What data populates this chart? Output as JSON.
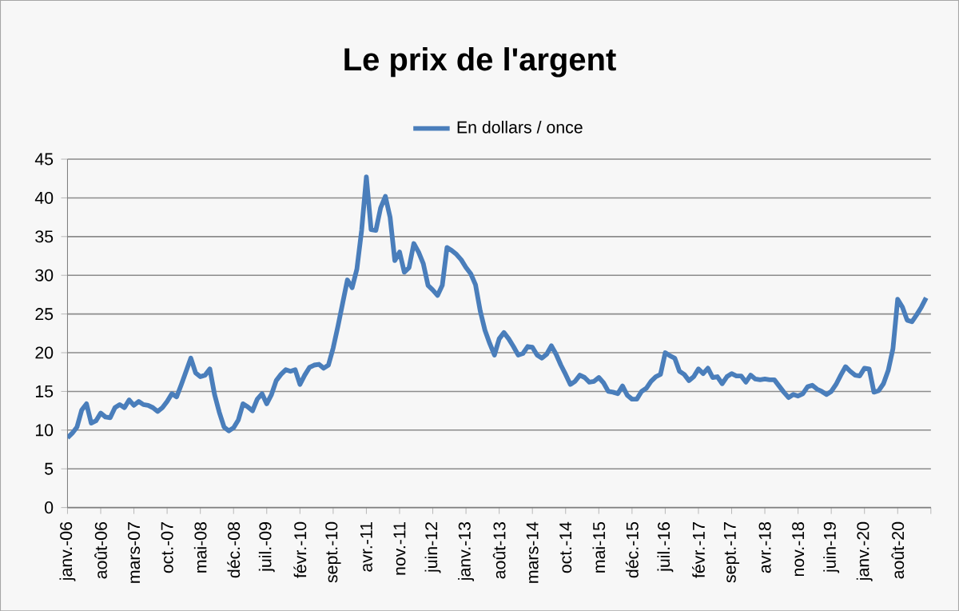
{
  "chart_data": {
    "type": "line",
    "title": "Le prix de l'argent",
    "categories": [
      "janv.-06",
      null,
      null,
      null,
      null,
      null,
      null,
      "août-06",
      null,
      null,
      null,
      null,
      null,
      null,
      "mars-07",
      null,
      null,
      null,
      null,
      null,
      null,
      "oct.-07",
      null,
      null,
      null,
      null,
      null,
      null,
      "mai-08",
      null,
      null,
      null,
      null,
      null,
      null,
      "déc.-08",
      null,
      null,
      null,
      null,
      null,
      null,
      "juil.-09",
      null,
      null,
      null,
      null,
      null,
      null,
      "févr.-10",
      null,
      null,
      null,
      null,
      null,
      null,
      "sept.-10",
      null,
      null,
      null,
      null,
      null,
      null,
      "avr.-11",
      null,
      null,
      null,
      null,
      null,
      null,
      "nov.-11",
      null,
      null,
      null,
      null,
      null,
      null,
      "juin-12",
      null,
      null,
      null,
      null,
      null,
      null,
      "janv.-13",
      null,
      null,
      null,
      null,
      null,
      null,
      "août-13",
      null,
      null,
      null,
      null,
      null,
      null,
      "mars-14",
      null,
      null,
      null,
      null,
      null,
      null,
      "oct.-14",
      null,
      null,
      null,
      null,
      null,
      null,
      "mai-15",
      null,
      null,
      null,
      null,
      null,
      null,
      "déc.-15",
      null,
      null,
      null,
      null,
      null,
      null,
      "juil.-16",
      null,
      null,
      null,
      null,
      null,
      null,
      "févr.-17",
      null,
      null,
      null,
      null,
      null,
      null,
      "sept.-17",
      null,
      null,
      null,
      null,
      null,
      null,
      "avr.-18",
      null,
      null,
      null,
      null,
      null,
      null,
      "nov.-18",
      null,
      null,
      null,
      null,
      null,
      null,
      "juin-19",
      null,
      null,
      null,
      null,
      null,
      null,
      "janv.-20",
      null,
      null,
      null,
      null,
      null,
      null,
      "août-20",
      null,
      null,
      null,
      null,
      null,
      null
    ],
    "series": [
      {
        "name": "En dollars / once",
        "color": "#4a7ebb",
        "values": [
          9.0,
          9.6,
          10.4,
          12.6,
          13.4,
          10.9,
          11.2,
          12.2,
          11.7,
          11.6,
          12.9,
          13.3,
          12.9,
          13.9,
          13.2,
          13.7,
          13.3,
          13.2,
          12.9,
          12.4,
          12.9,
          13.7,
          14.7,
          14.3,
          15.9,
          17.6,
          19.3,
          17.4,
          16.9,
          17.1,
          17.9,
          14.6,
          12.3,
          10.4,
          9.9,
          10.3,
          11.3,
          13.4,
          13.0,
          12.5,
          14.0,
          14.7,
          13.4,
          14.6,
          16.4,
          17.2,
          17.8,
          17.6,
          17.8,
          15.9,
          17.1,
          18.1,
          18.4,
          18.5,
          18.0,
          18.4,
          20.6,
          23.4,
          26.4,
          29.4,
          28.4,
          30.8,
          35.8,
          42.7,
          35.9,
          35.8,
          38.7,
          40.2,
          37.5,
          31.9,
          33.0,
          30.4,
          31.0,
          34.1,
          33.0,
          31.5,
          28.7,
          28.1,
          27.4,
          28.7,
          33.6,
          33.2,
          32.7,
          32.0,
          31.0,
          30.2,
          28.8,
          25.4,
          22.9,
          21.2,
          19.7,
          21.8,
          22.6,
          21.8,
          20.8,
          19.7,
          19.9,
          20.8,
          20.7,
          19.7,
          19.3,
          19.8,
          20.9,
          19.8,
          18.4,
          17.2,
          15.9,
          16.3,
          17.1,
          16.8,
          16.2,
          16.3,
          16.8,
          16.1,
          15.0,
          14.9,
          14.7,
          15.7,
          14.5,
          14.0,
          14.0,
          15.0,
          15.4,
          16.3,
          16.9,
          17.2,
          20.0,
          19.6,
          19.3,
          17.6,
          17.2,
          16.4,
          16.9,
          17.9,
          17.3,
          18.0,
          16.8,
          16.9,
          16.0,
          16.9,
          17.3,
          17.0,
          17.0,
          16.2,
          17.1,
          16.6,
          16.5,
          16.6,
          16.5,
          16.5,
          15.7,
          14.9,
          14.2,
          14.6,
          14.4,
          14.7,
          15.6,
          15.8,
          15.3,
          15.0,
          14.6,
          15.0,
          15.9,
          17.1,
          18.2,
          17.6,
          17.1,
          17.0,
          18.0,
          17.9,
          14.9,
          15.1,
          16.0,
          17.7,
          20.5,
          26.9,
          25.9,
          24.2,
          24.0,
          24.9,
          25.9,
          27.1
        ]
      }
    ],
    "ylim": [
      0,
      45
    ],
    "yticks": [
      0,
      5,
      10,
      15,
      20,
      25,
      30,
      35,
      40,
      45
    ],
    "grid": "y",
    "legend": "top",
    "marker": "none",
    "line_style": "solid"
  }
}
